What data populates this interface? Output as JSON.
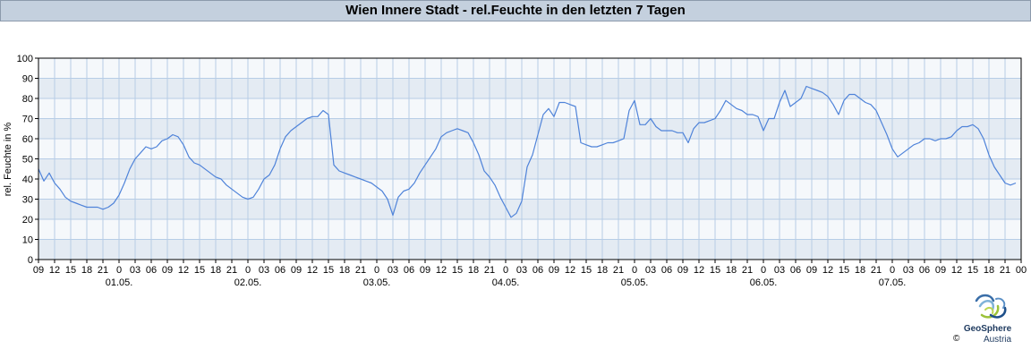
{
  "header": {
    "title": "Wien Innere Stadt - rel.Feuchte in den letzten 7 Tagen"
  },
  "branding": {
    "name": "GeoSphere",
    "sub": "Austria",
    "copyright": "©"
  },
  "colors": {
    "line": "#4f83d9",
    "band_dark": "#e4ebf3",
    "band_light": "#f5f8fb",
    "grid": "#b7cde6",
    "title_bg": "#c4d0de"
  },
  "chart_data": {
    "type": "line",
    "title": "Wien Innere Stadt - rel.Feuchte in den letzten 7 Tagen",
    "xlabel": "",
    "ylabel": "rel. Feuchte in %",
    "ylim": [
      0,
      100
    ],
    "yticks": [
      0,
      10,
      20,
      30,
      40,
      50,
      60,
      70,
      80,
      90,
      100
    ],
    "x_unit": "hours",
    "x_range": [
      0,
      183
    ],
    "xtick_labels": [
      "09",
      "12",
      "15",
      "18",
      "21",
      "0",
      "03",
      "06",
      "09",
      "12",
      "15",
      "18",
      "21",
      "0",
      "03",
      "06",
      "09",
      "12",
      "15",
      "18",
      "21",
      "0",
      "03",
      "06",
      "09",
      "12",
      "15",
      "18",
      "21",
      "0",
      "03",
      "06",
      "09",
      "12",
      "15",
      "18",
      "21",
      "0",
      "03",
      "06",
      "09",
      "12",
      "15",
      "18",
      "21",
      "0",
      "03",
      "06",
      "09",
      "12",
      "15",
      "18",
      "21",
      "0",
      "03",
      "06",
      "09",
      "12",
      "15",
      "18",
      "21",
      "00"
    ],
    "date_labels": [
      "01.05.",
      "02.05.",
      "03.05.",
      "04.05.",
      "05.05.",
      "06.05.",
      "07.05."
    ],
    "grid": true,
    "series": [
      {
        "x": [
          0,
          1,
          2,
          3,
          4,
          5,
          6,
          7,
          8,
          9,
          10,
          11,
          12,
          13,
          14,
          15,
          16,
          17,
          18,
          19,
          20,
          21,
          22,
          23,
          24,
          25,
          26,
          27,
          28,
          29,
          30,
          31,
          32,
          33,
          34,
          35,
          36,
          37,
          38,
          39,
          40,
          41,
          42,
          43,
          44,
          45,
          46,
          47,
          48,
          49,
          50,
          51,
          52,
          53,
          54,
          55,
          56,
          57,
          58,
          59,
          60,
          61,
          62,
          63,
          64,
          65,
          66,
          67,
          68,
          69,
          70,
          71,
          72,
          73,
          74,
          75,
          76,
          77,
          78,
          79,
          80,
          81,
          82,
          83,
          84,
          85,
          86,
          87,
          88,
          89,
          90,
          91,
          92,
          93,
          94,
          95,
          96,
          97,
          98,
          99,
          100,
          101,
          102,
          103,
          104,
          105,
          106,
          107,
          108,
          109,
          110,
          111,
          112,
          113,
          114,
          115,
          116,
          117,
          118,
          119,
          120,
          121,
          122,
          123,
          124,
          125,
          126,
          127,
          128,
          129,
          130,
          131,
          132,
          133,
          134,
          135,
          136,
          137,
          138,
          139,
          140,
          141,
          142,
          143,
          144,
          145,
          146,
          147,
          148,
          149,
          150,
          151,
          152,
          153,
          154,
          155,
          156,
          157,
          158,
          159,
          160,
          161,
          162,
          163,
          164,
          165,
          166,
          167,
          168,
          169,
          170,
          171,
          172,
          173,
          174,
          175,
          176,
          177,
          178,
          179,
          180,
          181,
          182
        ],
        "values": [
          45,
          39,
          43,
          38,
          35,
          31,
          29,
          28,
          27,
          26,
          26,
          26,
          25,
          26,
          28,
          32,
          38,
          45,
          50,
          53,
          56,
          55,
          56,
          59,
          60,
          62,
          61,
          57,
          51,
          48,
          47,
          45,
          43,
          41,
          40,
          37,
          35,
          33,
          31,
          30,
          31,
          35,
          40,
          42,
          47,
          55,
          61,
          64,
          66,
          68,
          70,
          71,
          71,
          74,
          72,
          47,
          44,
          43,
          42,
          41,
          40,
          39,
          38,
          36,
          34,
          30,
          22,
          31,
          34,
          35,
          38,
          43,
          47,
          51,
          55,
          61,
          63,
          64,
          65,
          64,
          63,
          58,
          52,
          44,
          41,
          37,
          31,
          26,
          21,
          23,
          29,
          46,
          52,
          62,
          72,
          75,
          71,
          78,
          78,
          77,
          76,
          58,
          57,
          56,
          56,
          57,
          58,
          58,
          59,
          60,
          74,
          79,
          67,
          67,
          70,
          66,
          64,
          64,
          64,
          63,
          63,
          58,
          65,
          68,
          68,
          69,
          70,
          74,
          79,
          77,
          75,
          74,
          72,
          72,
          71,
          64,
          70,
          70,
          78,
          84,
          76,
          78,
          80,
          86,
          85,
          84,
          83,
          81,
          77,
          72,
          79,
          82,
          82,
          80,
          78,
          77,
          74,
          68,
          62,
          55,
          51,
          53,
          55,
          57,
          58,
          60,
          60,
          59,
          60,
          60,
          61,
          64,
          66,
          66,
          67,
          65,
          60,
          52,
          46,
          42,
          38,
          37,
          38
        ]
      }
    ]
  }
}
